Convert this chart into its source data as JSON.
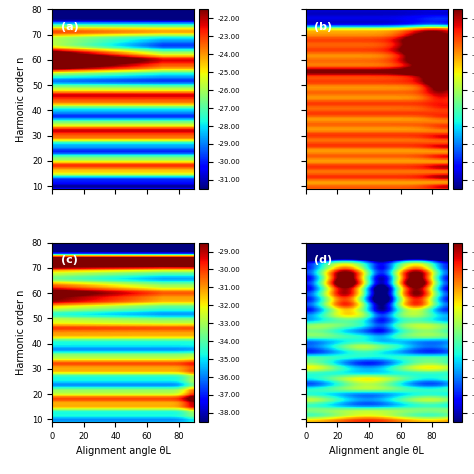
{
  "panel_labels": [
    "(a)",
    "(b)",
    "(c)",
    "(d)"
  ],
  "colorbar_ticks_ab": [
    -31.0,
    -30.0,
    -29.0,
    -28.0,
    -27.0,
    -26.0,
    -25.0,
    -24.0,
    -23.0,
    -22.0
  ],
  "colorbar_ticks_cd": [
    -38.0,
    -37.0,
    -36.0,
    -35.0,
    -34.0,
    -33.0,
    -32.0,
    -31.0,
    -30.0,
    -29.0
  ],
  "vmin_a": -31.5,
  "vmax_a": -21.5,
  "vmin_b": -31.5,
  "vmax_b": -21.5,
  "vmin_c": -38.5,
  "vmax_c": -28.5,
  "vmin_d": -38.5,
  "vmax_d": -28.5,
  "xlabel": "Alignment angle θL",
  "ylabel": "Harmonic order n",
  "cmap": "jet",
  "figsize": [
    4.74,
    4.74
  ],
  "dpi": 100
}
